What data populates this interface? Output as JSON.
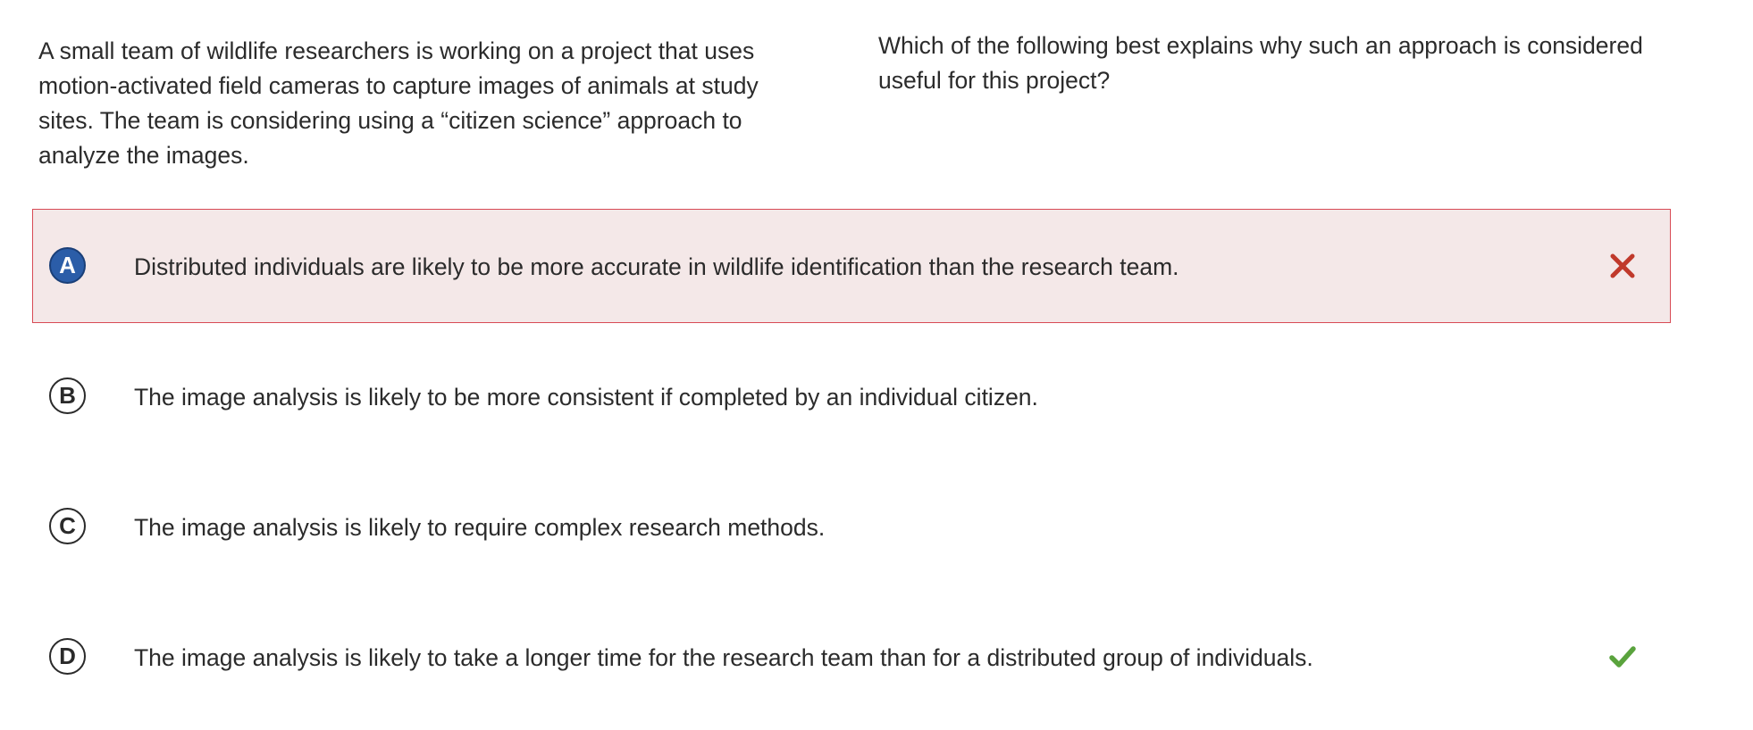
{
  "passage": "A small team of wildlife researchers is working on a project that uses motion-activated field cameras to capture images of animals at study sites. The team is considering using a “citizen science” approach to analyze the images.",
  "question": "Which of the following best explains why such an approach is considered useful for this project?",
  "choices": [
    {
      "letter": "A",
      "text": "Distributed individuals are likely to be more accurate in wildlife identification than the research team.",
      "state": "selected-incorrect",
      "mark_icon": "x-mark-icon"
    },
    {
      "letter": "B",
      "text": "The image analysis is likely to be more consistent if completed by an individual citizen.",
      "state": "unselected"
    },
    {
      "letter": "C",
      "text": "The image analysis is likely to require complex research methods.",
      "state": "unselected"
    },
    {
      "letter": "D",
      "text": "The image analysis is likely to take a longer time for the research team than for a distributed group of individuals.",
      "state": "correct",
      "mark_icon": "check-mark-icon"
    }
  ],
  "colors": {
    "wrong": "#c0392b",
    "wrong_bg": "#f4e8e8",
    "correct": "#5aa33d",
    "selected_letter": "#2b5da8"
  }
}
